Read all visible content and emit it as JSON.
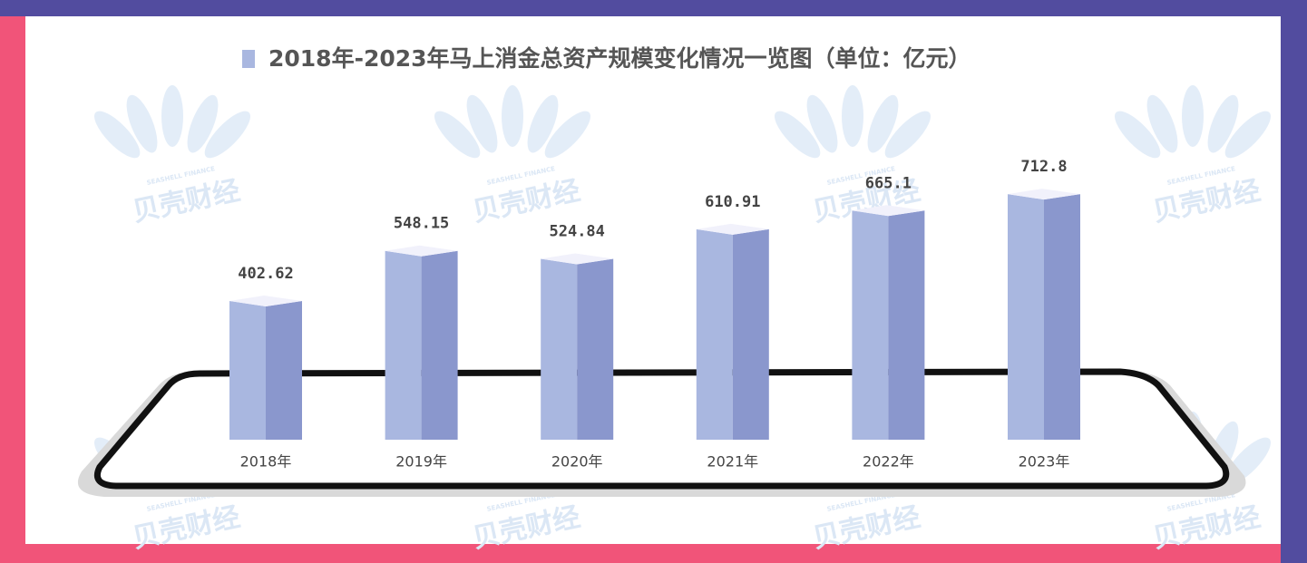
{
  "chart_data": {
    "type": "bar3d",
    "title": "2018年-2023年马上消金总资产规模变化情况一览图（单位：亿元）",
    "categories": [
      "2018年",
      "2019年",
      "2020年",
      "2021年",
      "2022年",
      "2023年"
    ],
    "values": [
      402.62,
      548.15,
      524.84,
      610.91,
      665.1,
      712.8
    ],
    "color": "#a9b7e0",
    "side_color": "#8a97cd"
  },
  "watermark": {
    "text": "贝壳财经",
    "subtext": "SEASHELL FINANCE"
  }
}
